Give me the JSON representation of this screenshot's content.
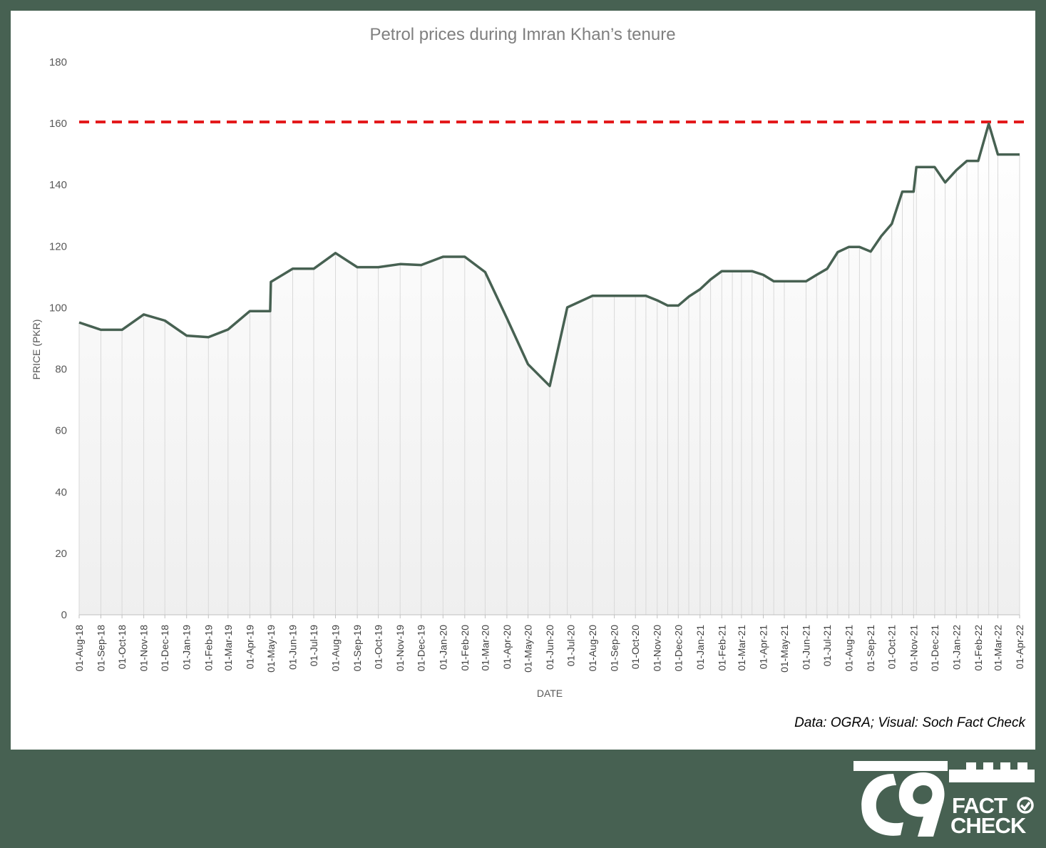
{
  "source_note": "Data: OGRA; Visual: Soch Fact Check",
  "logo": {
    "text_top": "FACT",
    "text_bottom": "CHECK",
    "icon": "soch-logo-icon"
  },
  "colors": {
    "background": "#476152",
    "line": "#476152",
    "reference_line": "#e31a1c",
    "drop_lines": "#d9d9d9"
  },
  "chart_data": {
    "type": "line",
    "title": "Petrol prices during Imran Khan’s tenure",
    "xlabel": "DATE",
    "ylabel": "PRICE (PKR)",
    "ylim": [
      0,
      180
    ],
    "yticks": [
      0,
      20,
      40,
      60,
      80,
      100,
      120,
      140,
      160,
      180
    ],
    "xlim": [
      "2018-08-01",
      "2022-04-01"
    ],
    "x_tick_labels": [
      "01-Aug-18",
      "01-Sep-18",
      "01-Oct-18",
      "01-Nov-18",
      "01-Dec-18",
      "01-Jan-19",
      "01-Feb-19",
      "01-Mar-19",
      "01-Apr-19",
      "01-May-19",
      "01-Jun-19",
      "01-Jul-19",
      "01-Aug-19",
      "01-Sep-19",
      "01-Oct-19",
      "01-Nov-19",
      "01-Dec-19",
      "01-Jan-20",
      "01-Feb-20",
      "01-Mar-20",
      "01-Apr-20",
      "01-May-20",
      "01-Jun-20",
      "01-Jul-20",
      "01-Aug-20",
      "01-Sep-20",
      "01-Oct-20",
      "01-Nov-20",
      "01-Dec-20",
      "01-Jan-21",
      "01-Feb-21",
      "01-Mar-21",
      "01-Apr-21",
      "01-May-21",
      "01-Jun-21",
      "01-Jul-21",
      "01-Aug-21",
      "01-Sep-21",
      "01-Oct-21",
      "01-Nov-21",
      "01-Dec-21",
      "01-Jan-22",
      "01-Feb-22",
      "01-Mar-22",
      "01-Apr-22"
    ],
    "x_tick_dates": [
      "2018-08-01",
      "2018-09-01",
      "2018-10-01",
      "2018-11-01",
      "2018-12-01",
      "2019-01-01",
      "2019-02-01",
      "2019-03-01",
      "2019-04-01",
      "2019-05-01",
      "2019-06-01",
      "2019-07-01",
      "2019-08-01",
      "2019-09-01",
      "2019-10-01",
      "2019-11-01",
      "2019-12-01",
      "2020-01-01",
      "2020-02-01",
      "2020-03-01",
      "2020-04-01",
      "2020-05-01",
      "2020-06-01",
      "2020-07-01",
      "2020-08-01",
      "2020-09-01",
      "2020-10-01",
      "2020-11-01",
      "2020-12-01",
      "2021-01-01",
      "2021-02-01",
      "2021-03-01",
      "2021-04-01",
      "2021-05-01",
      "2021-06-01",
      "2021-07-01",
      "2021-08-01",
      "2021-09-01",
      "2021-10-01",
      "2021-11-01",
      "2021-12-01",
      "2022-01-01",
      "2022-02-01",
      "2022-03-01",
      "2022-04-01"
    ],
    "series": [
      {
        "values": [
          {
            "x": "2018-08-01",
            "y": 95.2
          },
          {
            "x": "2018-09-01",
            "y": 92.8
          },
          {
            "x": "2018-10-01",
            "y": 92.8
          },
          {
            "x": "2018-11-01",
            "y": 97.8
          },
          {
            "x": "2018-12-01",
            "y": 95.8
          },
          {
            "x": "2019-01-01",
            "y": 90.9
          },
          {
            "x": "2019-02-01",
            "y": 90.4
          },
          {
            "x": "2019-03-01",
            "y": 92.9
          },
          {
            "x": "2019-04-01",
            "y": 98.9
          },
          {
            "x": "2019-04-30",
            "y": 98.9
          },
          {
            "x": "2019-05-01",
            "y": 108.4
          },
          {
            "x": "2019-06-01",
            "y": 112.7
          },
          {
            "x": "2019-07-01",
            "y": 112.7
          },
          {
            "x": "2019-08-01",
            "y": 117.8
          },
          {
            "x": "2019-09-01",
            "y": 113.2
          },
          {
            "x": "2019-10-01",
            "y": 113.2
          },
          {
            "x": "2019-11-01",
            "y": 114.2
          },
          {
            "x": "2019-12-01",
            "y": 113.9
          },
          {
            "x": "2020-01-01",
            "y": 116.6
          },
          {
            "x": "2020-02-01",
            "y": 116.6
          },
          {
            "x": "2020-03-01",
            "y": 111.6
          },
          {
            "x": "2020-04-01",
            "y": 96.6
          },
          {
            "x": "2020-05-01",
            "y": 81.6
          },
          {
            "x": "2020-06-01",
            "y": 74.5
          },
          {
            "x": "2020-06-26",
            "y": 100.1
          },
          {
            "x": "2020-08-01",
            "y": 103.9
          },
          {
            "x": "2020-09-01",
            "y": 103.9
          },
          {
            "x": "2020-10-01",
            "y": 103.9
          },
          {
            "x": "2020-10-16",
            "y": 103.9
          },
          {
            "x": "2020-11-01",
            "y": 102.4
          },
          {
            "x": "2020-11-16",
            "y": 100.7
          },
          {
            "x": "2020-12-01",
            "y": 100.7
          },
          {
            "x": "2020-12-16",
            "y": 103.6
          },
          {
            "x": "2021-01-01",
            "y": 106.0
          },
          {
            "x": "2021-01-16",
            "y": 109.2
          },
          {
            "x": "2021-02-01",
            "y": 111.9
          },
          {
            "x": "2021-02-16",
            "y": 111.9
          },
          {
            "x": "2021-03-01",
            "y": 111.9
          },
          {
            "x": "2021-03-16",
            "y": 111.9
          },
          {
            "x": "2021-04-01",
            "y": 110.7
          },
          {
            "x": "2021-04-16",
            "y": 108.6
          },
          {
            "x": "2021-05-01",
            "y": 108.6
          },
          {
            "x": "2021-06-01",
            "y": 108.6
          },
          {
            "x": "2021-06-16",
            "y": 110.7
          },
          {
            "x": "2021-07-01",
            "y": 112.7
          },
          {
            "x": "2021-07-16",
            "y": 118.1
          },
          {
            "x": "2021-08-01",
            "y": 119.8
          },
          {
            "x": "2021-08-16",
            "y": 119.8
          },
          {
            "x": "2021-09-01",
            "y": 118.3
          },
          {
            "x": "2021-09-16",
            "y": 123.3
          },
          {
            "x": "2021-10-01",
            "y": 127.3
          },
          {
            "x": "2021-10-16",
            "y": 137.8
          },
          {
            "x": "2021-11-01",
            "y": 137.8
          },
          {
            "x": "2021-11-05",
            "y": 145.8
          },
          {
            "x": "2021-12-01",
            "y": 145.8
          },
          {
            "x": "2021-12-16",
            "y": 140.8
          },
          {
            "x": "2022-01-01",
            "y": 144.8
          },
          {
            "x": "2022-01-16",
            "y": 147.8
          },
          {
            "x": "2022-02-01",
            "y": 147.8
          },
          {
            "x": "2022-02-16",
            "y": 159.9
          },
          {
            "x": "2022-03-01",
            "y": 149.9
          },
          {
            "x": "2022-04-01",
            "y": 149.9
          }
        ]
      }
    ],
    "reference_line": {
      "y": 160.5,
      "style": "dashed"
    },
    "drop_lines": true,
    "legend": "none",
    "grid": false
  }
}
